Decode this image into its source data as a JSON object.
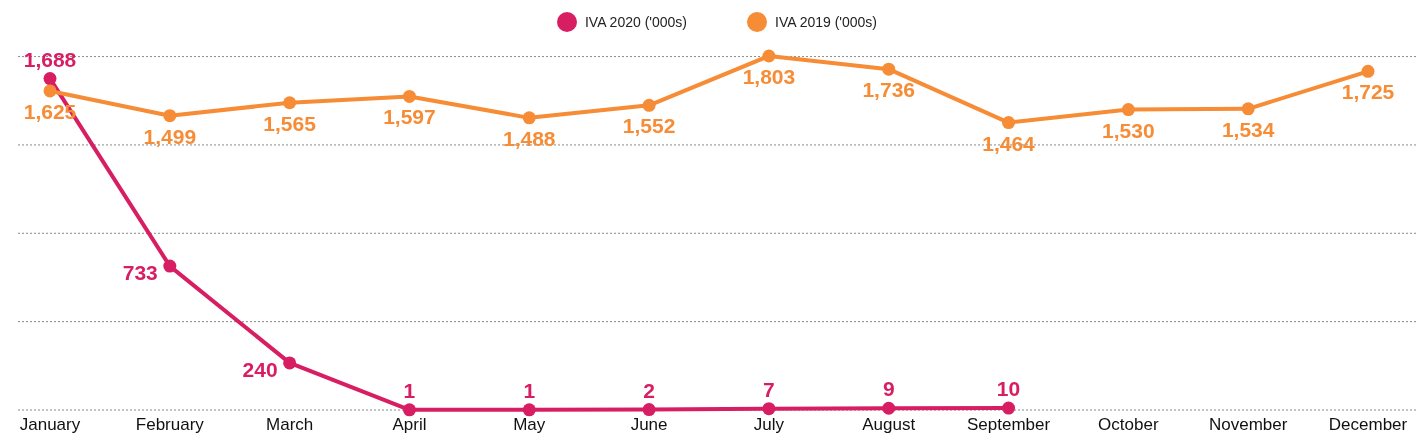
{
  "chart_data": {
    "type": "line",
    "categories": [
      "January",
      "February",
      "March",
      "April",
      "May",
      "June",
      "July",
      "August",
      "September",
      "October",
      "November",
      "December"
    ],
    "series": [
      {
        "name": "IVA 2020 ('000s)",
        "color": "#d81e63",
        "values": [
          1688,
          733,
          240,
          1,
          1,
          2,
          7,
          9,
          10,
          null,
          null,
          null
        ],
        "value_labels": [
          "1,688",
          "733",
          "240",
          "1",
          "1",
          "2",
          "7",
          "9",
          "10",
          null,
          null,
          null
        ]
      },
      {
        "name": "IVA 2019 ('000s)",
        "color": "#f68c35",
        "values": [
          1625,
          1499,
          1565,
          1597,
          1488,
          1552,
          1803,
          1736,
          1464,
          1530,
          1534,
          1725
        ],
        "value_labels": [
          "1,625",
          "1,499",
          "1,565",
          "1,597",
          "1,488",
          "1,552",
          "1,803",
          "1,736",
          "1,464",
          "1,530",
          "1,534",
          "1,725"
        ]
      }
    ],
    "yticks": [
      {
        "value": 0,
        "label": null
      },
      {
        "value": 450,
        "label": null
      },
      {
        "value": 900,
        "label": null
      },
      {
        "value": 1350,
        "label": null
      },
      {
        "value": 1800,
        "label": null
      }
    ],
    "grid": "y",
    "legend": "top",
    "tick_labels": "x",
    "marker": "circle",
    "line_style": "solid"
  }
}
